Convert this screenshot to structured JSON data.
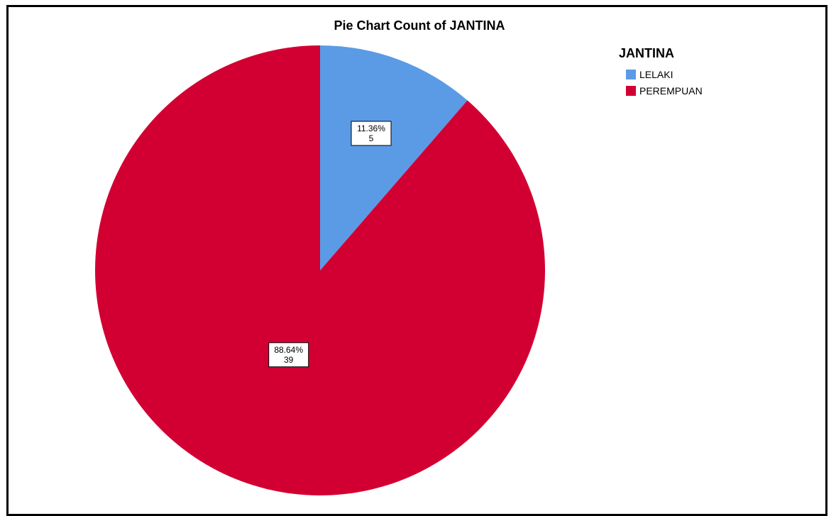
{
  "chart_data": {
    "type": "pie",
    "title": "Pie Chart Count of JANTINA",
    "legend_title": "JANTINA",
    "legend_position": "top-right",
    "categories": [
      "LELAKI",
      "PEREMPUAN"
    ],
    "values": [
      5,
      39
    ],
    "percent_labels": [
      "11.36%",
      "88.64%"
    ],
    "count_labels": [
      "5",
      "39"
    ],
    "colors": [
      "#5b9be6",
      "#d20032"
    ]
  }
}
